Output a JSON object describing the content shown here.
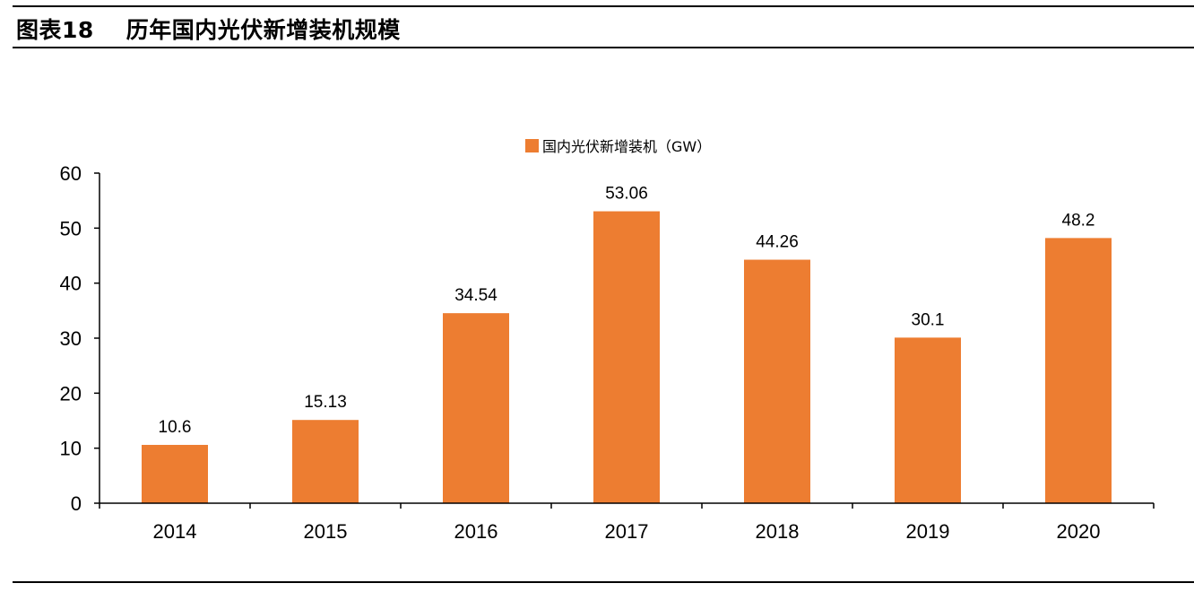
{
  "header": {
    "figure_label": "图表18",
    "figure_title": "历年国内光伏新增装机规模"
  },
  "colors": {
    "bar": "#ED7D31",
    "axis": "#000000"
  },
  "chart_data": {
    "type": "bar",
    "title": "",
    "xlabel": "",
    "ylabel": "",
    "categories": [
      "2014",
      "2015",
      "2016",
      "2017",
      "2018",
      "2019",
      "2020"
    ],
    "series": [
      {
        "name": "国内光伏新增装机（GW）",
        "values": [
          10.6,
          15.13,
          34.54,
          53.06,
          44.26,
          30.1,
          48.2
        ]
      }
    ],
    "data_labels": [
      "10.6",
      "15.13",
      "34.54",
      "53.06",
      "44.26",
      "30.1",
      "48.2"
    ],
    "ylim": [
      0,
      60
    ],
    "yticks": [
      0,
      10,
      20,
      30,
      40,
      50,
      60
    ],
    "grid": false,
    "legend_position": "top-center"
  }
}
